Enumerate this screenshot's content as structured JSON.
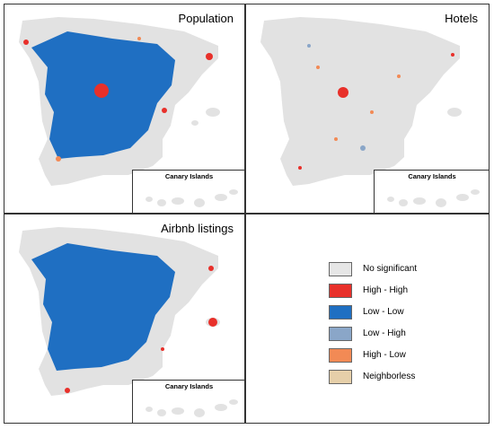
{
  "panels": {
    "population": {
      "title": "Population",
      "inset_title": "Canary Islands"
    },
    "hotels": {
      "title": "Hotels",
      "inset_title": "Canary Islands"
    },
    "airbnb": {
      "title": "Airbnb listings",
      "inset_title": "Canary Islands"
    }
  },
  "legend": {
    "items": [
      {
        "label": "No significant",
        "color": "#e6e6e6"
      },
      {
        "label": "High - High",
        "color": "#e8302a"
      },
      {
        "label": "Low - Low",
        "color": "#1f6fc2"
      },
      {
        "label": "Low - High",
        "color": "#8aa6c8"
      },
      {
        "label": "High  - Low",
        "color": "#f28a55"
      },
      {
        "label": "Neighborless",
        "color": "#e6cfa9"
      }
    ]
  },
  "colors": {
    "land": "#e2e2e2",
    "high_high": "#e8302a",
    "low_low": "#1f6fc2",
    "low_high": "#8aa6c8",
    "high_low": "#f28a55",
    "neighborless": "#e6cfa9"
  }
}
